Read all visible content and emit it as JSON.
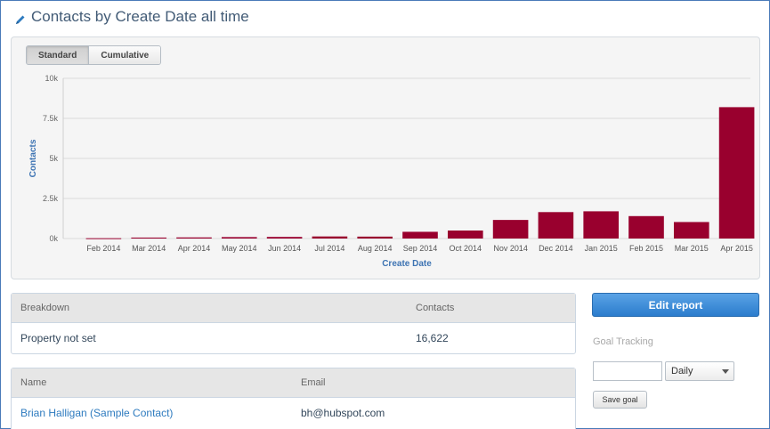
{
  "page": {
    "title": "Contacts by Create Date all time",
    "title_icon": "pencil-icon"
  },
  "toggle": {
    "standard_label": "Standard",
    "cumulative_label": "Cumulative",
    "selected": "Standard"
  },
  "chart_data": {
    "type": "bar",
    "categories": [
      "Feb 2014",
      "Mar 2014",
      "Apr 2014",
      "May 2014",
      "Jun 2014",
      "Jul 2014",
      "Aug 2014",
      "Sep 2014",
      "Oct 2014",
      "Nov 2014",
      "Dec 2014",
      "Jan 2015",
      "Feb 2015",
      "Mar 2015",
      "Apr 2015"
    ],
    "values": [
      20,
      60,
      70,
      90,
      100,
      130,
      120,
      420,
      500,
      1160,
      1650,
      1700,
      1400,
      1030,
      8200
    ],
    "xlabel": "Create Date",
    "ylabel": "Contacts",
    "ylim": [
      0,
      10000
    ],
    "yticks": [
      "0k",
      "2.5k",
      "5k",
      "7.5k",
      "10k"
    ],
    "ytick_values": [
      0,
      2500,
      5000,
      7500,
      10000
    ],
    "grid": true,
    "bar_color": "#99002e"
  },
  "breakdown_table": {
    "headers": [
      "Breakdown",
      "Contacts"
    ],
    "rows": [
      [
        "Property not set",
        "16,622"
      ]
    ]
  },
  "contacts_table": {
    "headers": [
      "Name",
      "Email"
    ],
    "rows": [
      [
        "Brian Halligan (Sample Contact)",
        "bh@hubspot.com"
      ]
    ]
  },
  "sidebar": {
    "edit_report_label": "Edit report",
    "goal_tracking_label": "Goal Tracking",
    "goal_value": "",
    "period_selected": "Daily",
    "save_goal_label": "Save goal"
  },
  "colors": {
    "accent": "#2b7ccd",
    "link": "#2e7bbf",
    "bar": "#99002e"
  }
}
